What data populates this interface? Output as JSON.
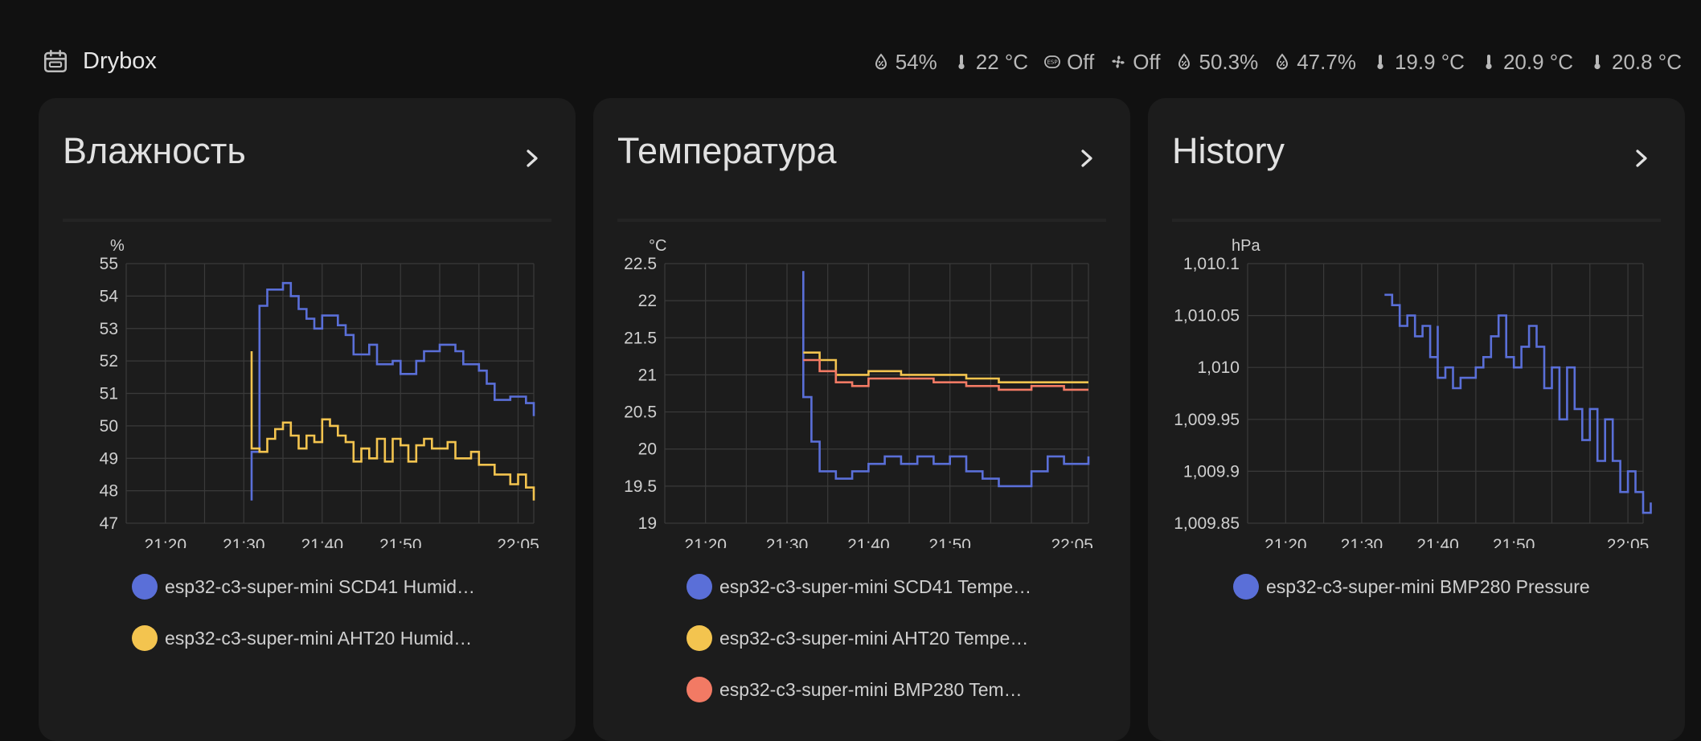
{
  "header": {
    "title": "Drybox",
    "icon": "calendar-icon",
    "badges": [
      {
        "icon": "water-percent-icon",
        "text": "54%"
      },
      {
        "icon": "thermometer-icon",
        "text": "22 °C"
      },
      {
        "icon": "esphome-icon",
        "text": "Off"
      },
      {
        "icon": "fan-icon",
        "text": "Off"
      },
      {
        "icon": "water-percent-icon",
        "text": "50.3%"
      },
      {
        "icon": "water-percent-icon",
        "text": "47.7%"
      },
      {
        "icon": "thermometer-icon",
        "text": "19.9 °C"
      },
      {
        "icon": "thermometer-icon",
        "text": "20.9 °C"
      },
      {
        "icon": "thermometer-icon",
        "text": "20.8 °C"
      }
    ]
  },
  "colors": {
    "blue": "#5a6fd8",
    "yellow": "#f3c44f",
    "red": "#f27a64",
    "grid": "#3a3a3a",
    "axis_text": "#cfcfcf"
  },
  "cards": [
    {
      "title": "Влажность",
      "legend": [
        {
          "label": "esp32-c3-super-mini SCD41 Humid…",
          "color": "#5a6fd8"
        },
        {
          "label": "esp32-c3-super-mini AHT20 Humid…",
          "color": "#f3c44f"
        }
      ]
    },
    {
      "title": "Температура",
      "legend": [
        {
          "label": "esp32-c3-super-mini SCD41 Tempe…",
          "color": "#5a6fd8"
        },
        {
          "label": "esp32-c3-super-mini AHT20 Tempe…",
          "color": "#f3c44f"
        },
        {
          "label": "esp32-c3-super-mini BMP280 Tem…",
          "color": "#f27a64"
        }
      ]
    },
    {
      "title": "History",
      "legend": [
        {
          "label": "esp32-c3-super-mini BMP280 Pressure",
          "color": "#5a6fd8"
        }
      ]
    }
  ],
  "chart_data": [
    {
      "type": "line",
      "title": "Влажность",
      "ylabel": "%",
      "ylim": [
        47,
        55
      ],
      "y_ticks": [
        "55",
        "54",
        "53",
        "52",
        "51",
        "50",
        "49",
        "48",
        "47"
      ],
      "x_ticks": [
        "21:20",
        "21:30",
        "21:40",
        "21:50",
        "22:05"
      ],
      "grid": true,
      "series": [
        {
          "name": "esp32-c3-super-mini SCD41 Humid…",
          "color": "#5a6fd8",
          "points": [
            {
              "x": "21:31",
              "y": 47.7
            },
            {
              "x": "21:31",
              "y": 49.2
            },
            {
              "x": "21:32",
              "y": 52.3
            },
            {
              "x": "21:32",
              "y": 53.7
            },
            {
              "x": "21:33",
              "y": 54.2
            },
            {
              "x": "21:35",
              "y": 54.4
            },
            {
              "x": "21:36",
              "y": 54.0
            },
            {
              "x": "21:37",
              "y": 53.6
            },
            {
              "x": "21:38",
              "y": 53.3
            },
            {
              "x": "21:39",
              "y": 53.0
            },
            {
              "x": "21:40",
              "y": 53.4
            },
            {
              "x": "21:42",
              "y": 53.1
            },
            {
              "x": "21:43",
              "y": 52.8
            },
            {
              "x": "21:44",
              "y": 52.2
            },
            {
              "x": "21:46",
              "y": 52.5
            },
            {
              "x": "21:47",
              "y": 51.9
            },
            {
              "x": "21:49",
              "y": 52.0
            },
            {
              "x": "21:50",
              "y": 51.6
            },
            {
              "x": "21:52",
              "y": 52.0
            },
            {
              "x": "21:53",
              "y": 52.3
            },
            {
              "x": "21:55",
              "y": 52.5
            },
            {
              "x": "21:57",
              "y": 52.3
            },
            {
              "x": "21:58",
              "y": 51.9
            },
            {
              "x": "22:00",
              "y": 51.7
            },
            {
              "x": "22:01",
              "y": 51.3
            },
            {
              "x": "22:02",
              "y": 50.8
            },
            {
              "x": "22:04",
              "y": 50.9
            },
            {
              "x": "22:06",
              "y": 50.7
            },
            {
              "x": "22:07",
              "y": 50.3
            }
          ]
        },
        {
          "name": "esp32-c3-super-mini AHT20 Humid…",
          "color": "#f3c44f",
          "points": [
            {
              "x": "21:31",
              "y": 52.3
            },
            {
              "x": "21:31",
              "y": 49.3
            },
            {
              "x": "21:32",
              "y": 49.2
            },
            {
              "x": "21:33",
              "y": 49.6
            },
            {
              "x": "21:34",
              "y": 49.9
            },
            {
              "x": "21:35",
              "y": 50.1
            },
            {
              "x": "21:36",
              "y": 49.7
            },
            {
              "x": "21:37",
              "y": 49.3
            },
            {
              "x": "21:38",
              "y": 49.7
            },
            {
              "x": "21:39",
              "y": 49.5
            },
            {
              "x": "21:40",
              "y": 50.2
            },
            {
              "x": "21:41",
              "y": 50.0
            },
            {
              "x": "21:42",
              "y": 49.7
            },
            {
              "x": "21:43",
              "y": 49.5
            },
            {
              "x": "21:44",
              "y": 48.9
            },
            {
              "x": "21:45",
              "y": 49.3
            },
            {
              "x": "21:46",
              "y": 49.0
            },
            {
              "x": "21:47",
              "y": 49.6
            },
            {
              "x": "21:48",
              "y": 48.9
            },
            {
              "x": "21:49",
              "y": 49.6
            },
            {
              "x": "21:50",
              "y": 49.4
            },
            {
              "x": "21:51",
              "y": 48.9
            },
            {
              "x": "21:52",
              "y": 49.4
            },
            {
              "x": "21:53",
              "y": 49.6
            },
            {
              "x": "21:54",
              "y": 49.3
            },
            {
              "x": "21:56",
              "y": 49.5
            },
            {
              "x": "21:57",
              "y": 49.0
            },
            {
              "x": "21:59",
              "y": 49.2
            },
            {
              "x": "22:00",
              "y": 48.8
            },
            {
              "x": "22:02",
              "y": 48.5
            },
            {
              "x": "22:04",
              "y": 48.2
            },
            {
              "x": "22:05",
              "y": 48.5
            },
            {
              "x": "22:06",
              "y": 48.1
            },
            {
              "x": "22:07",
              "y": 47.7
            }
          ]
        }
      ]
    },
    {
      "type": "line",
      "title": "Температура",
      "ylabel": "°C",
      "ylim": [
        19,
        22.5
      ],
      "y_ticks": [
        "22.5",
        "22",
        "21.5",
        "21",
        "20.5",
        "20",
        "19.5",
        "19"
      ],
      "x_ticks": [
        "21:20",
        "21:30",
        "21:40",
        "21:50",
        "22:05"
      ],
      "grid": true,
      "series": [
        {
          "name": "esp32-c3-super-mini SCD41 Tempe…",
          "color": "#5a6fd8",
          "points": [
            {
              "x": "21:32",
              "y": 22.4
            },
            {
              "x": "21:32",
              "y": 20.7
            },
            {
              "x": "21:33",
              "y": 20.1
            },
            {
              "x": "21:34",
              "y": 19.7
            },
            {
              "x": "21:36",
              "y": 19.6
            },
            {
              "x": "21:38",
              "y": 19.7
            },
            {
              "x": "21:40",
              "y": 19.8
            },
            {
              "x": "21:42",
              "y": 19.9
            },
            {
              "x": "21:44",
              "y": 19.8
            },
            {
              "x": "21:46",
              "y": 19.9
            },
            {
              "x": "21:48",
              "y": 19.8
            },
            {
              "x": "21:50",
              "y": 19.9
            },
            {
              "x": "21:52",
              "y": 19.7
            },
            {
              "x": "21:54",
              "y": 19.6
            },
            {
              "x": "21:56",
              "y": 19.5
            },
            {
              "x": "21:58",
              "y": 19.5
            },
            {
              "x": "22:00",
              "y": 19.7
            },
            {
              "x": "22:02",
              "y": 19.9
            },
            {
              "x": "22:04",
              "y": 19.8
            },
            {
              "x": "22:06",
              "y": 19.8
            },
            {
              "x": "22:07",
              "y": 19.9
            }
          ]
        },
        {
          "name": "esp32-c3-super-mini AHT20 Tempe…",
          "color": "#f3c44f",
          "points": [
            {
              "x": "21:32",
              "y": 21.3
            },
            {
              "x": "21:34",
              "y": 21.2
            },
            {
              "x": "21:36",
              "y": 21.0
            },
            {
              "x": "21:38",
              "y": 21.0
            },
            {
              "x": "21:40",
              "y": 21.05
            },
            {
              "x": "21:44",
              "y": 21.0
            },
            {
              "x": "21:48",
              "y": 21.0
            },
            {
              "x": "21:52",
              "y": 20.95
            },
            {
              "x": "21:56",
              "y": 20.9
            },
            {
              "x": "22:00",
              "y": 20.9
            },
            {
              "x": "22:04",
              "y": 20.9
            },
            {
              "x": "22:07",
              "y": 20.9
            }
          ]
        },
        {
          "name": "esp32-c3-super-mini BMP280 Tem…",
          "color": "#f27a64",
          "points": [
            {
              "x": "21:32",
              "y": 21.2
            },
            {
              "x": "21:34",
              "y": 21.05
            },
            {
              "x": "21:36",
              "y": 20.9
            },
            {
              "x": "21:38",
              "y": 20.85
            },
            {
              "x": "21:40",
              "y": 20.95
            },
            {
              "x": "21:44",
              "y": 20.95
            },
            {
              "x": "21:48",
              "y": 20.9
            },
            {
              "x": "21:52",
              "y": 20.85
            },
            {
              "x": "21:56",
              "y": 20.8
            },
            {
              "x": "22:00",
              "y": 20.85
            },
            {
              "x": "22:04",
              "y": 20.8
            },
            {
              "x": "22:07",
              "y": 20.8
            }
          ]
        }
      ]
    },
    {
      "type": "line",
      "title": "History",
      "ylabel": "hPa",
      "ylim": [
        1009.85,
        1010.1
      ],
      "y_ticks": [
        "1,010.1",
        "1,010.05",
        "1,010",
        "1,009.95",
        "1,009.9",
        "1,009.85"
      ],
      "x_ticks": [
        "21:20",
        "21:30",
        "21:40",
        "21:50",
        "22:05"
      ],
      "grid": true,
      "series": [
        {
          "name": "esp32-c3-super-mini BMP280 Pressure",
          "color": "#5a6fd8",
          "points": [
            {
              "x": "21:33",
              "y": 1010.07
            },
            {
              "x": "21:34",
              "y": 1010.06
            },
            {
              "x": "21:35",
              "y": 1010.04
            },
            {
              "x": "21:36",
              "y": 1010.05
            },
            {
              "x": "21:37",
              "y": 1010.03
            },
            {
              "x": "21:38",
              "y": 1010.04
            },
            {
              "x": "21:39",
              "y": 1010.01
            },
            {
              "x": "21:40",
              "y": 1010.04
            },
            {
              "x": "21:40",
              "y": 1009.99
            },
            {
              "x": "21:41",
              "y": 1010.0
            },
            {
              "x": "21:42",
              "y": 1009.98
            },
            {
              "x": "21:43",
              "y": 1009.99
            },
            {
              "x": "21:45",
              "y": 1010.0
            },
            {
              "x": "21:46",
              "y": 1010.01
            },
            {
              "x": "21:47",
              "y": 1010.03
            },
            {
              "x": "21:48",
              "y": 1010.05
            },
            {
              "x": "21:49",
              "y": 1010.01
            },
            {
              "x": "21:50",
              "y": 1010.0
            },
            {
              "x": "21:51",
              "y": 1010.02
            },
            {
              "x": "21:52",
              "y": 1010.04
            },
            {
              "x": "21:53",
              "y": 1010.02
            },
            {
              "x": "21:54",
              "y": 1009.98
            },
            {
              "x": "21:55",
              "y": 1010.0
            },
            {
              "x": "21:56",
              "y": 1009.95
            },
            {
              "x": "21:57",
              "y": 1010.0
            },
            {
              "x": "21:58",
              "y": 1009.96
            },
            {
              "x": "21:59",
              "y": 1009.93
            },
            {
              "x": "22:00",
              "y": 1009.96
            },
            {
              "x": "22:01",
              "y": 1009.91
            },
            {
              "x": "22:02",
              "y": 1009.95
            },
            {
              "x": "22:03",
              "y": 1009.91
            },
            {
              "x": "22:04",
              "y": 1009.88
            },
            {
              "x": "22:05",
              "y": 1009.9
            },
            {
              "x": "22:06",
              "y": 1009.88
            },
            {
              "x": "22:07",
              "y": 1009.86
            },
            {
              "x": "22:08",
              "y": 1009.87
            }
          ]
        }
      ]
    }
  ]
}
